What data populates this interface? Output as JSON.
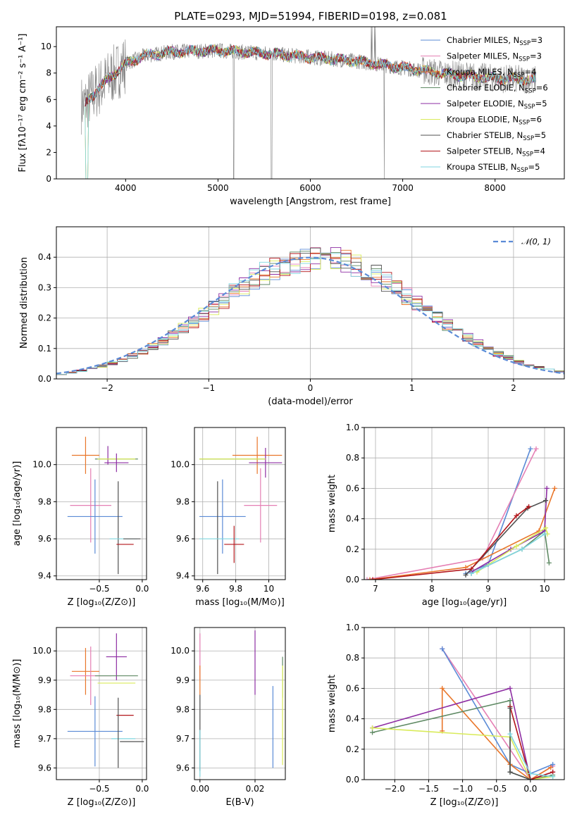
{
  "figure": {
    "title": "PLATE=0293, MJD=51994, FIBERID=0198, z=0.081"
  },
  "colors": {
    "chabrier_miles": "#5b8bd6",
    "salpeter_miles": "#e57fb4",
    "kroupa_miles": "#e9762a",
    "chabrier_elodie": "#5f8a64",
    "salpeter_elodie": "#8e2ea3",
    "kroupa_elodie": "#d9eb5a",
    "chabrier_stelib": "#505050",
    "salpeter_stelib": "#b3161b",
    "kroupa_stelib": "#7fd6df",
    "data": "#7f7f7f",
    "grid": "#b0b0b0",
    "normal": "#5b8bd6"
  },
  "legend_entries": [
    {
      "key": "chabrier_miles",
      "label": "Chabrier MILES, N",
      "sub": "SSP",
      "n": "=3"
    },
    {
      "key": "salpeter_miles",
      "label": "Salpeter MILES, N",
      "sub": "SSP",
      "n": "=3"
    },
    {
      "key": "kroupa_miles",
      "label": "Kroupa MILES, N",
      "sub": "SSP",
      "n": "=4"
    },
    {
      "key": "chabrier_elodie",
      "label": "Chabrier ELODIE, N",
      "sub": "SSP",
      "n": "=6"
    },
    {
      "key": "salpeter_elodie",
      "label": "Salpeter ELODIE, N",
      "sub": "SSP",
      "n": "=5"
    },
    {
      "key": "kroupa_elodie",
      "label": "Kroupa ELODIE, N",
      "sub": "SSP",
      "n": "=6"
    },
    {
      "key": "chabrier_stelib",
      "label": "Chabrier STELIB, N",
      "sub": "SSP",
      "n": "=5"
    },
    {
      "key": "salpeter_stelib",
      "label": "Salpeter STELIB, N",
      "sub": "SSP",
      "n": "=4"
    },
    {
      "key": "kroupa_stelib",
      "label": "Kroupa STELIB, N",
      "sub": "SSP",
      "n": "=5"
    }
  ],
  "chart_data": [
    {
      "id": "spectrum",
      "type": "line",
      "xlabel": "wavelength [Angstrom, rest frame]",
      "ylabel": "Flux [fλ10⁻¹⁷ erg cm⁻² s⁻¹ A⁻¹]",
      "xlim": [
        3250,
        8750
      ],
      "ylim": [
        0,
        11.5
      ],
      "xticks": [
        4000,
        5000,
        6000,
        7000,
        8000
      ],
      "yticks": [
        0,
        2,
        4,
        6,
        8,
        10
      ],
      "grid": false,
      "legend": "top-right",
      "continuum": {
        "x": [
          3550,
          3700,
          3850,
          4000,
          4200,
          4500,
          5000,
          5500,
          6000,
          6500,
          7000,
          7500,
          8000,
          8400
        ],
        "y": [
          5.6,
          6.8,
          7.8,
          8.7,
          9.3,
          9.6,
          9.7,
          9.5,
          9.2,
          8.9,
          8.4,
          7.9,
          7.6,
          7.5
        ]
      }
    },
    {
      "id": "residuals",
      "type": "histogram",
      "xlabel": "(data-model)/error",
      "ylabel": "Normed distribution",
      "xlim": [
        -2.5,
        2.5
      ],
      "ylim": [
        0,
        0.5
      ],
      "xticks": [
        -2,
        -1,
        0,
        1,
        2
      ],
      "yticks": [
        0.0,
        0.1,
        0.2,
        0.3,
        0.4
      ],
      "grid": true,
      "legend": "top-right",
      "reference_label": "𝒩(0, 1)",
      "bins": {
        "start": -2.5,
        "width": 0.1,
        "count": 50
      }
    },
    {
      "id": "age_vs_Z",
      "type": "errorbar",
      "xlabel": "Z [log₁₀(Z/Z⊙)]",
      "ylabel": "age  [log₁₀(age/yr)]",
      "xlim": [
        -1.0,
        0.05
      ],
      "ylim": [
        9.38,
        10.2
      ],
      "xticks": [
        -0.5,
        0.0
      ],
      "xticklabels": [
        "−0.5",
        "0.0"
      ],
      "yticks": [
        9.4,
        9.6,
        9.8,
        10.0
      ],
      "grid": true,
      "points": [
        {
          "key": "kroupa_miles",
          "x": -0.66,
          "xerr": 0.16,
          "y": 10.05,
          "yerr": 0.1
        },
        {
          "key": "salpeter_elodie",
          "x": -0.4,
          "xerr": 0.0,
          "y": 10.05,
          "yerr": 0.05
        },
        {
          "key": "chabrier_elodie",
          "x": -0.3,
          "xerr": 0.25,
          "y": 10.03,
          "yerr": 0.0
        },
        {
          "key": "kroupa_elodie",
          "x": -0.3,
          "xerr": 0.22,
          "y": 10.03,
          "yerr": 0.0
        },
        {
          "key": "salpeter_elodie",
          "x": -0.3,
          "xerr": 0.14,
          "y": 10.01,
          "yerr": 0.05
        },
        {
          "key": "salpeter_miles",
          "x": -0.6,
          "xerr": 0.24,
          "y": 9.78,
          "yerr": 0.2
        },
        {
          "key": "chabrier_miles",
          "x": -0.55,
          "xerr": 0.32,
          "y": 9.72,
          "yerr": 0.2
        },
        {
          "key": "chabrier_stelib",
          "x": -0.28,
          "xerr": 0.0,
          "y": 9.66,
          "yerr": 0.25
        },
        {
          "key": "kroupa_stelib",
          "x": -0.22,
          "xerr": 0.16,
          "y": 9.6,
          "yerr": 0.0
        },
        {
          "key": "chabrier_stelib",
          "x": -0.12,
          "xerr": 0.1,
          "y": 9.6,
          "yerr": 0.0
        },
        {
          "key": "salpeter_stelib",
          "x": -0.2,
          "xerr": 0.1,
          "y": 9.57,
          "yerr": 0.0
        }
      ]
    },
    {
      "id": "age_vs_mass",
      "type": "errorbar",
      "xlabel": "mass [log₁₀(M/M⊙)]",
      "ylabel": "",
      "xlim": [
        9.55,
        10.1
      ],
      "ylim": [
        9.38,
        10.2
      ],
      "xticks": [
        9.6,
        9.8,
        10.0
      ],
      "yticks": [
        9.4,
        9.6,
        9.8,
        10.0
      ],
      "grid": true,
      "points": [
        {
          "key": "kroupa_miles",
          "x": 9.93,
          "xerr": 0.15,
          "y": 10.05,
          "yerr": 0.1
        },
        {
          "key": "salpeter_elodie",
          "x": 9.98,
          "xerr": 0.1,
          "y": 10.01,
          "yerr": 0.08
        },
        {
          "key": "chabrier_elodie",
          "x": 9.78,
          "xerr": 0.2,
          "y": 10.03,
          "yerr": 0.0
        },
        {
          "key": "kroupa_elodie",
          "x": 9.78,
          "xerr": 0.2,
          "y": 10.03,
          "yerr": 0.0
        },
        {
          "key": "salpeter_miles",
          "x": 9.95,
          "xerr": 0.1,
          "y": 9.78,
          "yerr": 0.2
        },
        {
          "key": "chabrier_miles",
          "x": 9.72,
          "xerr": 0.14,
          "y": 9.72,
          "yerr": 0.2
        },
        {
          "key": "chabrier_stelib",
          "x": 9.69,
          "xerr": 0.0,
          "y": 9.66,
          "yerr": 0.25
        },
        {
          "key": "kroupa_stelib",
          "x": 9.7,
          "xerr": 0.12,
          "y": 9.6,
          "yerr": 0.0
        },
        {
          "key": "salpeter_stelib",
          "x": 9.79,
          "xerr": 0.06,
          "y": 9.57,
          "yerr": 0.1
        }
      ]
    },
    {
      "id": "weight_vs_age",
      "type": "line",
      "xlabel": "age  [log₁₀(age/yr)]",
      "ylabel": "mass weight",
      "xlim": [
        6.8,
        10.35
      ],
      "ylim": [
        0,
        1.0
      ],
      "xticks": [
        7,
        8,
        9,
        10
      ],
      "yticks": [
        0.0,
        0.2,
        0.4,
        0.6,
        0.8,
        1.0
      ],
      "grid": true,
      "series": [
        {
          "key": "chabrier_miles",
          "x": [
            8.6,
            9.0,
            9.75
          ],
          "y": [
            0.04,
            0.1,
            0.86
          ]
        },
        {
          "key": "salpeter_miles",
          "x": [
            6.85,
            8.9,
            9.85
          ],
          "y": [
            0.0,
            0.14,
            0.86
          ]
        },
        {
          "key": "kroupa_miles",
          "x": [
            6.9,
            8.6,
            9.9,
            10.18
          ],
          "y": [
            0.0,
            0.08,
            0.32,
            0.6
          ]
        },
        {
          "key": "chabrier_elodie",
          "x": [
            8.7,
            9.6,
            10.0,
            10.08
          ],
          "y": [
            0.04,
            0.2,
            0.32,
            0.11
          ]
        },
        {
          "key": "salpeter_elodie",
          "x": [
            8.7,
            9.4,
            10.0,
            10.04
          ],
          "y": [
            0.05,
            0.2,
            0.32,
            0.6
          ]
        },
        {
          "key": "kroupa_elodie",
          "x": [
            8.8,
            9.5,
            10.02,
            10.05
          ],
          "y": [
            0.05,
            0.22,
            0.34,
            0.3
          ]
        },
        {
          "key": "chabrier_stelib",
          "x": [
            8.6,
            9.7,
            10.02
          ],
          "y": [
            0.03,
            0.47,
            0.52
          ]
        },
        {
          "key": "salpeter_stelib",
          "x": [
            6.95,
            8.7,
            9.5,
            9.72
          ],
          "y": [
            0.0,
            0.07,
            0.42,
            0.48
          ]
        },
        {
          "key": "kroupa_stelib",
          "x": [
            8.7,
            9.6,
            10.0
          ],
          "y": [
            0.04,
            0.2,
            0.3
          ]
        }
      ]
    },
    {
      "id": "mass_vs_Z",
      "type": "errorbar",
      "xlabel": "Z [log₁₀(Z/Z⊙)]",
      "ylabel": "mass [log₁₀(M/M⊙)]",
      "xlim": [
        -1.0,
        0.05
      ],
      "ylim": [
        9.56,
        10.08
      ],
      "xticks": [
        -0.5,
        0.0
      ],
      "xticklabels": [
        "−0.5",
        "0.0"
      ],
      "yticks": [
        9.6,
        9.7,
        9.8,
        9.9,
        10.0
      ],
      "grid": true,
      "points": [
        {
          "key": "salpeter_elodie",
          "x": -0.3,
          "xerr": 0.12,
          "y": 9.98,
          "yerr": 0.08
        },
        {
          "key": "kroupa_miles",
          "x": -0.66,
          "xerr": 0.16,
          "y": 9.93,
          "yerr": 0.08
        },
        {
          "key": "salpeter_miles",
          "x": -0.6,
          "xerr": 0.24,
          "y": 9.915,
          "yerr": 0.1
        },
        {
          "key": "chabrier_elodie",
          "x": -0.3,
          "xerr": 0.25,
          "y": 9.915,
          "yerr": 0.0
        },
        {
          "key": "kroupa_elodie",
          "x": -0.3,
          "xerr": 0.22,
          "y": 9.89,
          "yerr": 0.0
        },
        {
          "key": "salpeter_stelib",
          "x": -0.2,
          "xerr": 0.1,
          "y": 9.78,
          "yerr": 0.0
        },
        {
          "key": "chabrier_miles",
          "x": -0.55,
          "xerr": 0.32,
          "y": 9.725,
          "yerr": 0.12
        },
        {
          "key": "kroupa_stelib",
          "x": -0.22,
          "xerr": 0.14,
          "y": 9.7,
          "yerr": 0.0
        },
        {
          "key": "chabrier_stelib",
          "x": -0.12,
          "xerr": 0.14,
          "y": 9.69,
          "yerr": 0.0
        },
        {
          "key": "chabrier_stelib",
          "x": -0.28,
          "xerr": 0.0,
          "y": 9.72,
          "yerr": 0.12
        }
      ]
    },
    {
      "id": "mass_vs_ebv",
      "type": "errorbar",
      "xlabel": "E(B-V)",
      "ylabel": "",
      "xlim": [
        -0.002,
        0.031
      ],
      "ylim": [
        9.56,
        10.08
      ],
      "xticks": [
        0.0,
        0.02
      ],
      "xticklabels": [
        "0.00",
        "0.02"
      ],
      "yticks": [
        9.6,
        9.7,
        9.8,
        9.9,
        10.0
      ],
      "grid": true,
      "points": [
        {
          "key": "salpeter_miles",
          "x": 0.0,
          "xerr": 0.0,
          "y": 9.98,
          "yerr": 0.08
        },
        {
          "key": "kroupa_miles",
          "x": 0.0,
          "xerr": 0.0,
          "y": 9.9,
          "yerr": 0.05
        },
        {
          "key": "chabrier_stelib",
          "x": 0.0,
          "xerr": 0.0,
          "y": 9.72,
          "yerr": 0.13
        },
        {
          "key": "kroupa_stelib",
          "x": 0.0,
          "xerr": 0.0,
          "y": 9.65,
          "yerr": 0.08
        },
        {
          "key": "salpeter_elodie",
          "x": 0.02,
          "xerr": 0.0,
          "y": 9.96,
          "yerr": 0.11
        },
        {
          "key": "chabrier_miles",
          "x": 0.0265,
          "xerr": 0.0,
          "y": 9.74,
          "yerr": 0.14
        },
        {
          "key": "chabrier_elodie",
          "x": 0.03,
          "xerr": 0.0,
          "y": 9.91,
          "yerr": 0.07
        },
        {
          "key": "kroupa_elodie",
          "x": 0.03,
          "xerr": 0.0,
          "y": 9.78,
          "yerr": 0.17
        }
      ]
    },
    {
      "id": "weight_vs_Z",
      "type": "line",
      "xlabel": "Z [log₁₀(Z/Z⊙)]",
      "ylabel": "mass weight",
      "xlim": [
        -2.45,
        0.5
      ],
      "ylim": [
        0,
        1.0
      ],
      "xticks": [
        -2.0,
        -1.5,
        -1.0,
        -0.5,
        0.0
      ],
      "xticklabels": [
        "−2.0",
        "−1.5",
        "−1.0",
        "−0.5",
        "0.0"
      ],
      "yticks": [
        0.0,
        0.2,
        0.4,
        0.6,
        0.8,
        1.0
      ],
      "grid": true,
      "series": [
        {
          "key": "salpeter_miles",
          "x": [
            -1.3,
            0.0,
            0.33
          ],
          "y": [
            0.86,
            0.0,
            0.09
          ]
        },
        {
          "key": "chabrier_miles",
          "x": [
            -1.3,
            -0.3,
            0.0,
            0.33
          ],
          "y": [
            0.86,
            0.1,
            0.04,
            0.1
          ]
        },
        {
          "key": "kroupa_miles",
          "x": [
            -1.3,
            -1.3,
            -0.3,
            0.0,
            0.3
          ],
          "y": [
            0.32,
            0.6,
            0.1,
            0.0,
            0.08
          ]
        },
        {
          "key": "salpeter_elodie",
          "x": [
            -2.33,
            -0.3,
            0.0,
            0.33
          ],
          "y": [
            0.34,
            0.6,
            0.0,
            0.05
          ]
        },
        {
          "key": "chabrier_elodie",
          "x": [
            -2.33,
            -0.3,
            -0.3,
            0.0,
            0.33
          ],
          "y": [
            0.31,
            0.52,
            0.05,
            0.0,
            0.03
          ]
        },
        {
          "key": "kroupa_elodie",
          "x": [
            -2.33,
            -0.3,
            0.0,
            0.33
          ],
          "y": [
            0.34,
            0.28,
            0.0,
            0.02
          ]
        },
        {
          "key": "salpeter_stelib",
          "x": [
            -0.3,
            0.0,
            0.33
          ],
          "y": [
            0.48,
            0.0,
            0.05
          ]
        },
        {
          "key": "chabrier_stelib",
          "x": [
            -0.3,
            -0.3,
            0.0
          ],
          "y": [
            0.47,
            0.05,
            0.0
          ]
        },
        {
          "key": "kroupa_stelib",
          "x": [
            -0.3,
            0.0,
            0.33
          ],
          "y": [
            0.3,
            0.04,
            0.02
          ]
        }
      ]
    }
  ]
}
